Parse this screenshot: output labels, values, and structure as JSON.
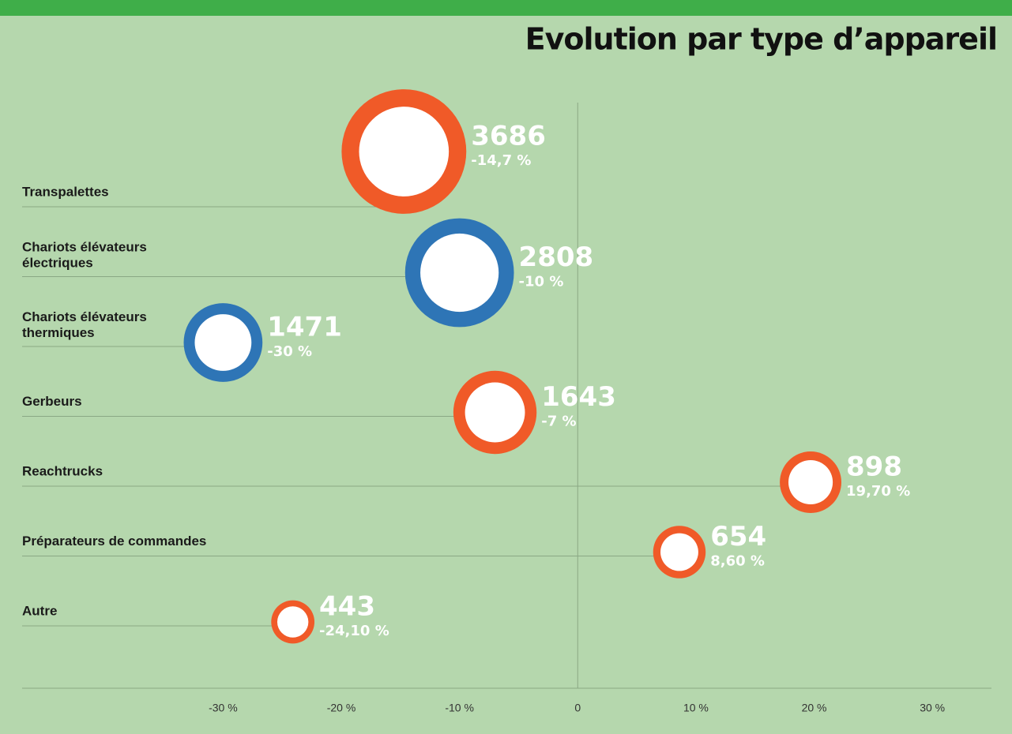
{
  "chart_data": {
    "type": "bubble",
    "title": "Evolution par type d’appareil",
    "categories": [
      "Transpalettes",
      "Chariots élévateurs électriques",
      "Chariots élévateurs thermiques",
      "Gerbeurs",
      "Reachtrucks",
      "Préparateurs de commandes",
      "Autre"
    ],
    "values": [
      -14.7,
      -10,
      -30,
      -7,
      19.7,
      8.6,
      -24.1
    ],
    "value_labels": [
      "-14,7 %",
      "-10 %",
      "-30 %",
      "-7 %",
      "19,70 %",
      "8,60 %",
      "-24,10 %"
    ],
    "sizes": [
      3686,
      2808,
      1471,
      1643,
      898,
      654,
      443
    ],
    "colors": [
      "#f05a28",
      "#2e75b6",
      "#2e75b6",
      "#f05a28",
      "#f05a28",
      "#f05a28",
      "#f05a28"
    ],
    "xlim": [
      -47,
      35
    ],
    "xticks": [
      {
        "value": -30,
        "label": "-30 %"
      },
      {
        "value": -20,
        "label": "-20 %"
      },
      {
        "value": -10,
        "label": "-10 %"
      },
      0,
      {
        "value": 10,
        "label": "10 %"
      },
      {
        "value": 20,
        "label": "20 %"
      },
      {
        "value": 30,
        "label": "30 %"
      }
    ]
  }
}
